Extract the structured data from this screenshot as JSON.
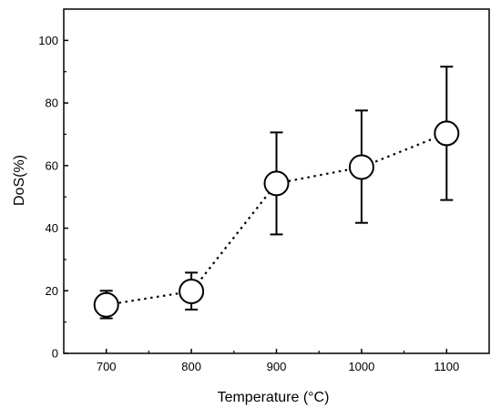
{
  "chart_data": {
    "type": "scatter",
    "title": "",
    "xlabel": "Temperature (°C)",
    "ylabel": "DoS(%)",
    "xlim": [
      650,
      1150
    ],
    "ylim": [
      0,
      110
    ],
    "x_ticks": [
      700,
      800,
      900,
      1000,
      1100
    ],
    "y_ticks": [
      0,
      20,
      40,
      60,
      80,
      100
    ],
    "series": [
      {
        "x": [
          700,
          800,
          900,
          1000,
          1100
        ],
        "y": [
          15.5,
          19.8,
          54.3,
          59.5,
          70.3
        ],
        "err_low": [
          11.2,
          14.0,
          38.0,
          41.7,
          49.0
        ],
        "err_high": [
          20.0,
          25.8,
          70.6,
          77.6,
          91.6
        ],
        "line_style": "dotted",
        "marker": "open-circle",
        "color": "#000000"
      }
    ],
    "grid": false,
    "legend": "none"
  }
}
